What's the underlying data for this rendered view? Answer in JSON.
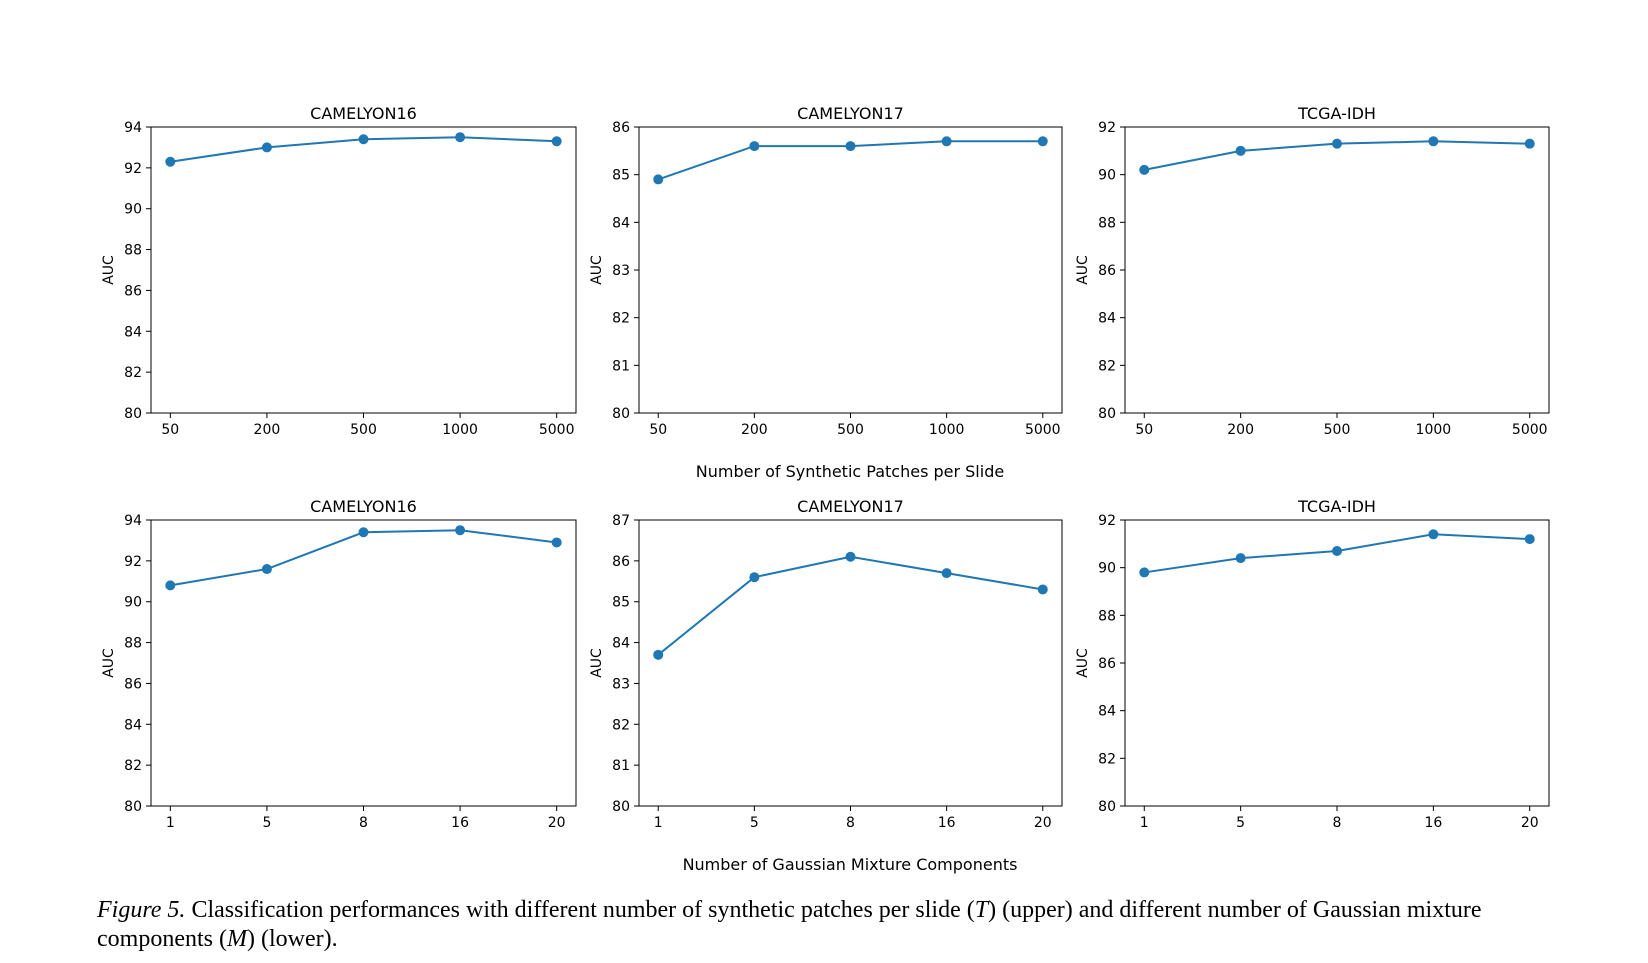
{
  "chart_data": [
    {
      "type": "line",
      "title": "CAMELYON16",
      "ylabel": "AUC",
      "categories": [
        "50",
        "200",
        "500",
        "1000",
        "5000"
      ],
      "series": [
        {
          "color": "#1f77b4",
          "values": [
            92.3,
            93.0,
            93.4,
            93.5,
            93.3
          ]
        }
      ],
      "ylim": [
        80,
        94
      ],
      "yticks": [
        80,
        82,
        84,
        86,
        88,
        90,
        92,
        94
      ]
    },
    {
      "type": "line",
      "title": "CAMELYON17",
      "ylabel": "AUC",
      "categories": [
        "50",
        "200",
        "500",
        "1000",
        "5000"
      ],
      "series": [
        {
          "color": "#1f77b4",
          "values": [
            84.9,
            85.6,
            85.6,
            85.7,
            85.7
          ]
        }
      ],
      "ylim": [
        80,
        86
      ],
      "yticks": [
        80,
        81,
        82,
        83,
        84,
        85,
        86
      ]
    },
    {
      "type": "line",
      "title": "TCGA-IDH",
      "ylabel": "AUC",
      "categories": [
        "50",
        "200",
        "500",
        "1000",
        "5000"
      ],
      "series": [
        {
          "color": "#1f77b4",
          "values": [
            90.2,
            91.0,
            91.3,
            91.4,
            91.3
          ]
        }
      ],
      "ylim": [
        80,
        92
      ],
      "yticks": [
        80,
        82,
        84,
        86,
        88,
        90,
        92
      ]
    },
    {
      "type": "line",
      "title": "CAMELYON16",
      "ylabel": "AUC",
      "categories": [
        "1",
        "5",
        "8",
        "16",
        "20"
      ],
      "series": [
        {
          "color": "#1f77b4",
          "values": [
            90.8,
            91.6,
            93.4,
            93.5,
            92.9
          ]
        }
      ],
      "ylim": [
        80,
        94
      ],
      "yticks": [
        80,
        82,
        84,
        86,
        88,
        90,
        92,
        94
      ]
    },
    {
      "type": "line",
      "title": "CAMELYON17",
      "ylabel": "AUC",
      "categories": [
        "1",
        "5",
        "8",
        "16",
        "20"
      ],
      "series": [
        {
          "color": "#1f77b4",
          "values": [
            83.7,
            85.6,
            86.1,
            85.7,
            85.3
          ]
        }
      ],
      "ylim": [
        80,
        87
      ],
      "yticks": [
        80,
        81,
        82,
        83,
        84,
        85,
        86,
        87
      ]
    },
    {
      "type": "line",
      "title": "TCGA-IDH",
      "ylabel": "AUC",
      "categories": [
        "1",
        "5",
        "8",
        "16",
        "20"
      ],
      "series": [
        {
          "color": "#1f77b4",
          "values": [
            89.8,
            90.4,
            90.7,
            91.4,
            91.2
          ]
        }
      ],
      "ylim": [
        80,
        92
      ],
      "yticks": [
        80,
        82,
        84,
        86,
        88,
        90,
        92
      ]
    }
  ],
  "figure": {
    "row_xlabels": [
      "Number of Synthetic Patches per Slide",
      "Number of Gaussian Mixture Components"
    ],
    "caption": {
      "label": "Figure 5.",
      "parts": [
        " Classification performances with different number of synthetic patches per slide (",
        "T",
        ") (upper) and different number of Gaussian mixture components (",
        "M",
        ") (lower)."
      ]
    }
  }
}
